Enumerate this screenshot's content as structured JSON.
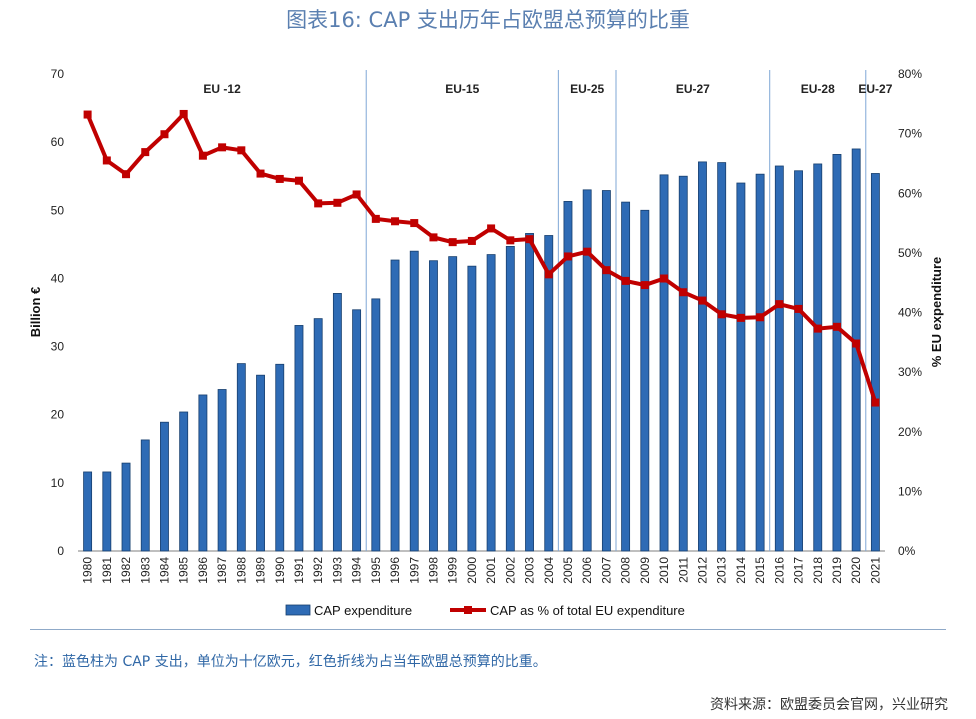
{
  "title": "图表16: CAP 支出历年占欧盟总预算的比重",
  "note": "注：蓝色柱为 CAP 支出，单位为十亿欧元，红色折线为占当年欧盟总预算的比重。",
  "source": "资料来源：欧盟委员会官网，兴业研究",
  "chart_data": {
    "type": "bar",
    "categories": [
      "1980",
      "1981",
      "1982",
      "1983",
      "1984",
      "1985",
      "1986",
      "1987",
      "1988",
      "1989",
      "1990",
      "1991",
      "1992",
      "1993",
      "1994",
      "1995",
      "1996",
      "1997",
      "1998",
      "1999",
      "2000",
      "2001",
      "2002",
      "2003",
      "2004",
      "2005",
      "2006",
      "2007",
      "2008",
      "2009",
      "2010",
      "2011",
      "2012",
      "2013",
      "2014",
      "2015",
      "2016",
      "2017",
      "2018",
      "2019",
      "2020",
      "2021"
    ],
    "series": [
      {
        "name": "CAP expenditure",
        "type": "bar",
        "axis": "left",
        "color": "#2e6bb5",
        "values": [
          11.6,
          11.6,
          12.9,
          16.3,
          18.9,
          20.4,
          22.9,
          23.7,
          27.5,
          25.8,
          27.4,
          33.1,
          34.1,
          37.8,
          35.4,
          37.0,
          42.7,
          44.0,
          42.6,
          43.2,
          41.8,
          43.5,
          44.7,
          46.6,
          46.3,
          51.3,
          53.0,
          52.9,
          51.2,
          50.0,
          55.2,
          55.0,
          57.1,
          57.0,
          54.0,
          55.3,
          56.5,
          55.8,
          56.8,
          58.2,
          59.0,
          55.4
        ]
      },
      {
        "name": "CAP as % of total EU expenditure",
        "type": "line",
        "axis": "right",
        "color": "#c00000",
        "values": [
          73.2,
          65.5,
          63.2,
          66.9,
          69.9,
          73.3,
          66.3,
          67.7,
          67.2,
          63.3,
          62.4,
          62.1,
          58.3,
          58.4,
          59.8,
          55.7,
          55.3,
          55.0,
          52.6,
          51.8,
          52.0,
          54.1,
          52.1,
          52.3,
          46.4,
          49.4,
          50.2,
          47.1,
          45.3,
          44.6,
          45.7,
          43.4,
          42.0,
          39.7,
          39.1,
          39.2,
          41.4,
          40.6,
          37.3,
          37.6,
          34.8,
          24.9
        ]
      }
    ],
    "y_left": {
      "label": "Billion €",
      "ylim": [
        0,
        70
      ],
      "ticks": [
        "0",
        "10",
        "20",
        "30",
        "40",
        "50",
        "60",
        "70"
      ]
    },
    "y_right": {
      "label": "% EU expenditure",
      "ylim": [
        0,
        80
      ],
      "ticks": [
        "0%",
        "10%",
        "20%",
        "30%",
        "40%",
        "50%",
        "60%",
        "70%",
        "80%"
      ]
    },
    "eras": [
      {
        "label": "EU -12",
        "start": "1980",
        "end": "1994"
      },
      {
        "label": "EU-15",
        "start": "1995",
        "end": "2004"
      },
      {
        "label": "EU-25",
        "start": "2005",
        "end": "2007"
      },
      {
        "label": "EU-27",
        "start": "2008",
        "end": "2015"
      },
      {
        "label": "EU-28",
        "start": "2016",
        "end": "2020"
      },
      {
        "label": "EU-27",
        "start": "2021",
        "end": "2021"
      }
    ],
    "era_separator_color": "#7fa7d6",
    "legend_position": "bottom",
    "grid": false
  }
}
